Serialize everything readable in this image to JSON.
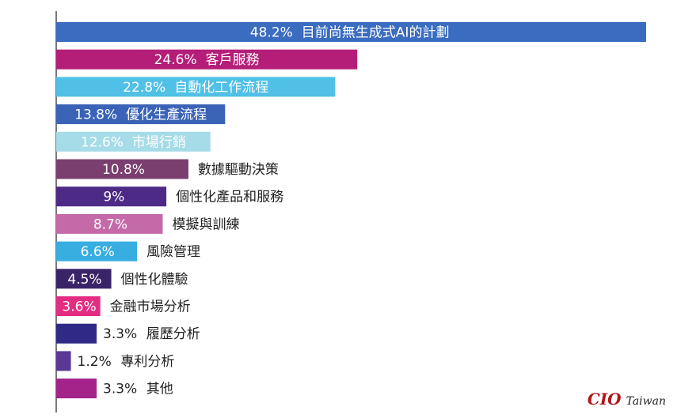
{
  "chart_data": {
    "type": "bar",
    "orientation": "horizontal",
    "xlim": [
      0,
      48.2
    ],
    "grid": false,
    "categories": [
      "目前尚無生成式AI的計劃",
      "客戶服務",
      "自動化工作流程",
      "優化生產流程",
      "市場行銷",
      "數據驅動決策",
      "個性化產品和服務",
      "模擬與訓練",
      "風險管理",
      "個性化體驗",
      "金融市場分析",
      "履歷分析",
      "專利分析",
      "其他"
    ],
    "values": [
      48.2,
      24.6,
      22.8,
      13.8,
      12.6,
      10.8,
      9,
      8.7,
      6.6,
      4.5,
      3.6,
      3.3,
      1.2,
      3.3
    ],
    "value_labels": [
      "48.2%",
      "24.6%",
      "22.8%",
      "13.8%",
      "12.6%",
      "10.8%",
      "9%",
      "8.7%",
      "6.6%",
      "4.5%",
      "3.6%",
      "3.3%",
      "1.2%",
      "3.3%"
    ],
    "colors": [
      "#3a6cc0",
      "#b41e78",
      "#50c0e6",
      "#3a63b8",
      "#a6dbe8",
      "#7a3f6e",
      "#4e2a87",
      "#c46aa8",
      "#38aee0",
      "#3a2468",
      "#e42c82",
      "#2e2a86",
      "#5a3896",
      "#a3238b"
    ]
  },
  "branding": {
    "logo": "CIO",
    "logo_suffix": "Taiwan"
  }
}
